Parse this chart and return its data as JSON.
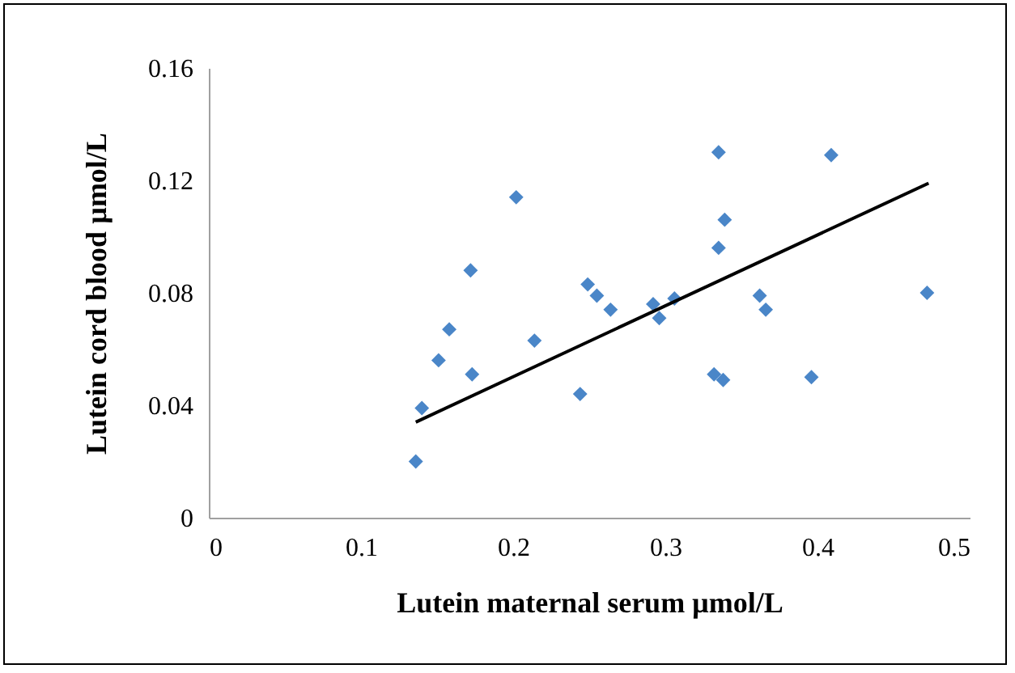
{
  "chart_data": {
    "type": "scatter",
    "xlabel": "Lutein maternal serum µmol/L",
    "ylabel": "Lutein cord blood µmol/L",
    "xlim": [
      0,
      0.5
    ],
    "xticks": [
      0,
      0.1,
      0.2,
      0.3,
      0.4,
      0.5
    ],
    "ylim": [
      0,
      0.16
    ],
    "yticks": [
      0,
      0.04,
      0.08,
      0.12,
      0.16
    ],
    "grid": false,
    "series": [
      {
        "marker": "diamond",
        "color": "#4a86c8",
        "x": [
          0.136,
          0.14,
          0.151,
          0.158,
          0.172,
          0.173,
          0.202,
          0.214,
          0.244,
          0.249,
          0.255,
          0.264,
          0.292,
          0.296,
          0.306,
          0.335,
          0.339,
          0.335,
          0.332,
          0.338,
          0.362,
          0.366,
          0.396,
          0.409,
          0.472
        ],
        "values": [
          0.02,
          0.039,
          0.056,
          0.067,
          0.088,
          0.051,
          0.114,
          0.063,
          0.044,
          0.083,
          0.079,
          0.074,
          0.076,
          0.071,
          0.078,
          0.13,
          0.106,
          0.096,
          0.051,
          0.049,
          0.079,
          0.074,
          0.05,
          0.129,
          0.08
        ]
      },
      {
        "type": "line",
        "marker": "none",
        "color": "#000000",
        "x": [
          0.136,
          0.473
        ],
        "values": [
          0.034,
          0.119
        ]
      }
    ]
  }
}
